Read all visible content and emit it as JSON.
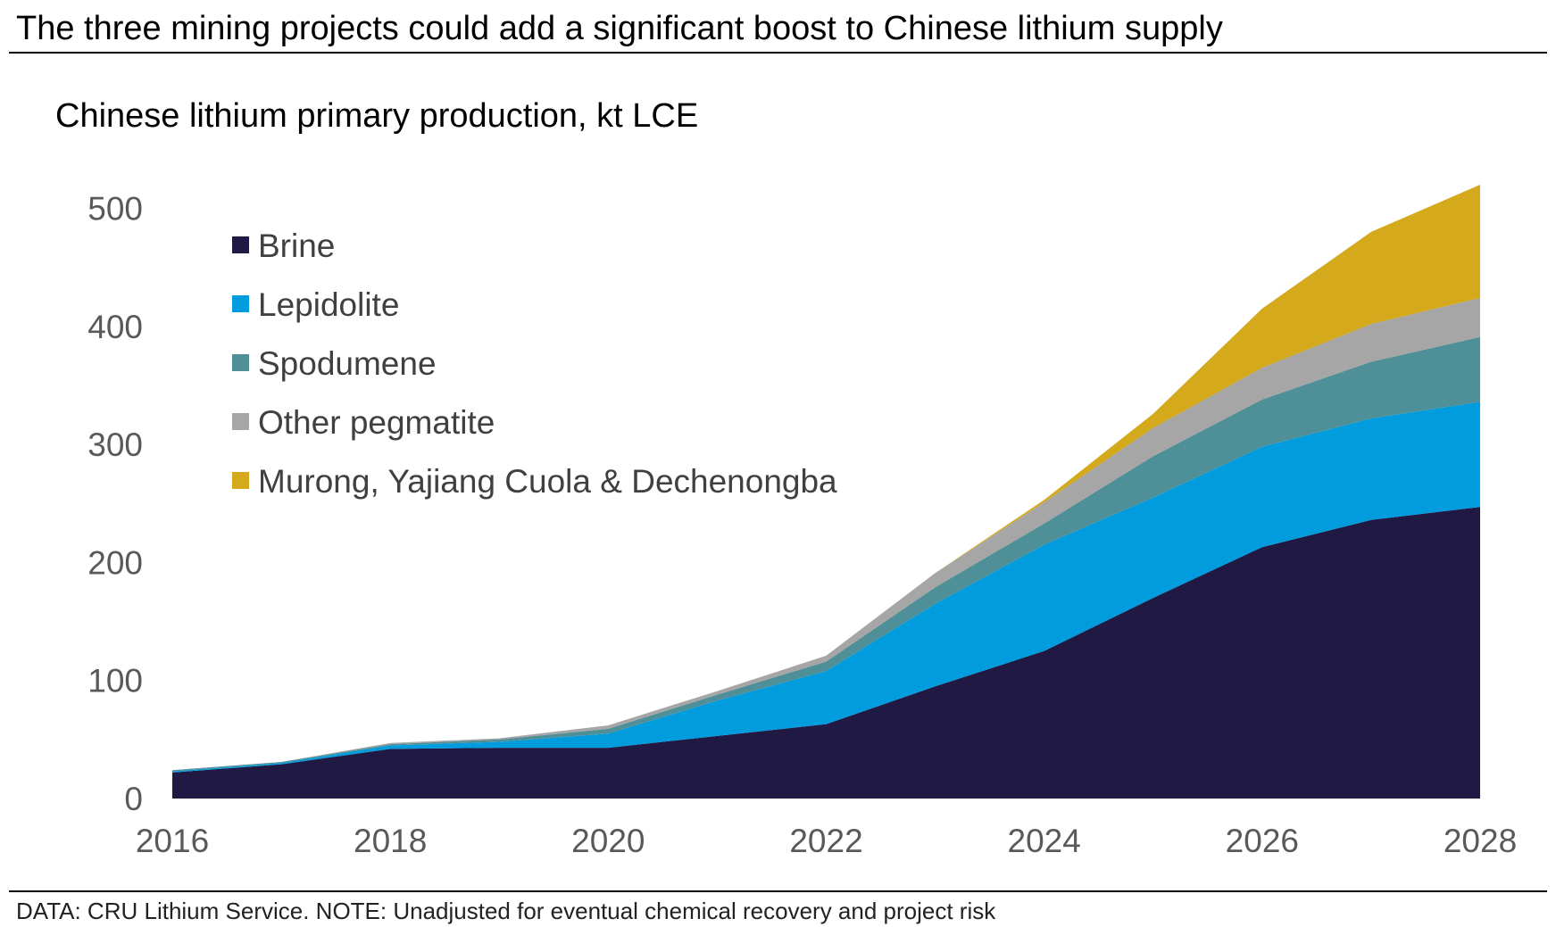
{
  "header": {
    "title": "The three mining projects could add a significant boost to Chinese lithium supply",
    "subtitle": "Chinese lithium primary production, kt LCE"
  },
  "footer": {
    "source": "DATA: CRU Lithium Service. NOTE: Unadjusted for eventual chemical recovery and project risk"
  },
  "chart_data": {
    "type": "area",
    "stacked": true,
    "x": [
      2016,
      2017,
      2018,
      2019,
      2020,
      2021,
      2022,
      2023,
      2024,
      2025,
      2026,
      2027,
      2028
    ],
    "series": [
      {
        "name": "Brine",
        "color": "#201944",
        "values": [
          22,
          29,
          42,
          43,
          43,
          53,
          63,
          95,
          125,
          170,
          213,
          236,
          247
        ]
      },
      {
        "name": "Lepidolite",
        "color": "#009CDE",
        "values": [
          1,
          1,
          3,
          5,
          12,
          30,
          45,
          70,
          90,
          85,
          85,
          86,
          89
        ]
      },
      {
        "name": "Spodumene",
        "color": "#4F8F98",
        "values": [
          1,
          1,
          1,
          2,
          4,
          5,
          8,
          14,
          18,
          35,
          40,
          48,
          55
        ]
      },
      {
        "name": "Other pegmatite",
        "color": "#A6A6A6",
        "values": [
          0,
          0,
          1,
          1,
          3,
          3,
          5,
          12,
          18,
          24,
          27,
          32,
          33
        ]
      },
      {
        "name": "Murong, Yajiang Cuola & Dechenongba",
        "color": "#D4A91C",
        "values": [
          0,
          0,
          0,
          0,
          0,
          0,
          0,
          0,
          2,
          12,
          50,
          78,
          96
        ]
      }
    ],
    "ylim": [
      0,
      520
    ],
    "yticks": [
      0,
      100,
      200,
      300,
      400,
      500
    ],
    "xticks": [
      2016,
      2018,
      2020,
      2022,
      2024,
      2026,
      2028
    ],
    "legend_position": "top-left",
    "grid": false
  }
}
